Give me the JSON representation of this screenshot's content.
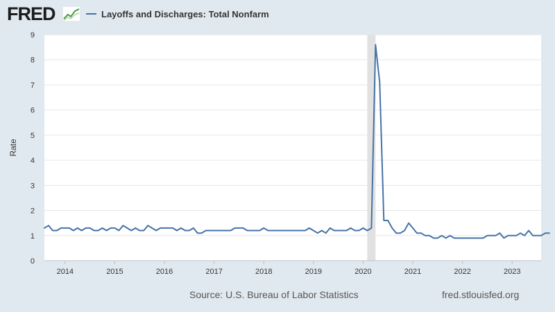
{
  "header": {
    "logo": "FRED",
    "legend_label": "Layoffs and Discharges: Total Nonfarm"
  },
  "footer": {
    "source": "Source: U.S. Bureau of Labor Statistics",
    "url": "fred.stlouisfed.org"
  },
  "colors": {
    "series": "#4572a7",
    "recession": "#e1e1e1",
    "background": "#e1e9f0"
  },
  "chart_data": {
    "type": "line",
    "title": "",
    "xlabel": "",
    "ylabel": "Rate",
    "ylim": [
      0,
      9
    ],
    "yticks": [
      0,
      1,
      2,
      3,
      4,
      5,
      6,
      7,
      8,
      9
    ],
    "xlim": [
      "2013-08",
      "2023-08"
    ],
    "xticks": [
      "2014",
      "2015",
      "2016",
      "2017",
      "2018",
      "2019",
      "2020",
      "2021",
      "2022",
      "2023"
    ],
    "grid": true,
    "legend": "top-left",
    "recessions": [
      {
        "start": "2020-02",
        "end": "2020-04"
      }
    ],
    "series": [
      {
        "name": "Layoffs and Discharges: Total Nonfarm",
        "start": "2013-08",
        "frequency": "monthly",
        "values": [
          1.3,
          1.4,
          1.2,
          1.2,
          1.3,
          1.3,
          1.3,
          1.2,
          1.3,
          1.2,
          1.3,
          1.3,
          1.2,
          1.2,
          1.3,
          1.2,
          1.3,
          1.3,
          1.2,
          1.4,
          1.3,
          1.2,
          1.3,
          1.2,
          1.2,
          1.4,
          1.3,
          1.2,
          1.3,
          1.3,
          1.3,
          1.3,
          1.2,
          1.3,
          1.2,
          1.2,
          1.3,
          1.1,
          1.1,
          1.2,
          1.2,
          1.2,
          1.2,
          1.2,
          1.2,
          1.2,
          1.3,
          1.3,
          1.3,
          1.2,
          1.2,
          1.2,
          1.2,
          1.3,
          1.2,
          1.2,
          1.2,
          1.2,
          1.2,
          1.2,
          1.2,
          1.2,
          1.2,
          1.2,
          1.3,
          1.2,
          1.1,
          1.2,
          1.1,
          1.3,
          1.2,
          1.2,
          1.2,
          1.2,
          1.3,
          1.2,
          1.2,
          1.3,
          1.2,
          1.3,
          8.6,
          7.1,
          1.6,
          1.6,
          1.3,
          1.1,
          1.1,
          1.2,
          1.5,
          1.3,
          1.1,
          1.1,
          1.0,
          1.0,
          0.9,
          0.9,
          1.0,
          0.9,
          1.0,
          0.9,
          0.9,
          0.9,
          0.9,
          0.9,
          0.9,
          0.9,
          0.9,
          1.0,
          1.0,
          1.0,
          1.1,
          0.9,
          1.0,
          1.0,
          1.0,
          1.1,
          1.0,
          1.2,
          1.0,
          1.0,
          1.0,
          1.1,
          1.1
        ]
      }
    ]
  }
}
